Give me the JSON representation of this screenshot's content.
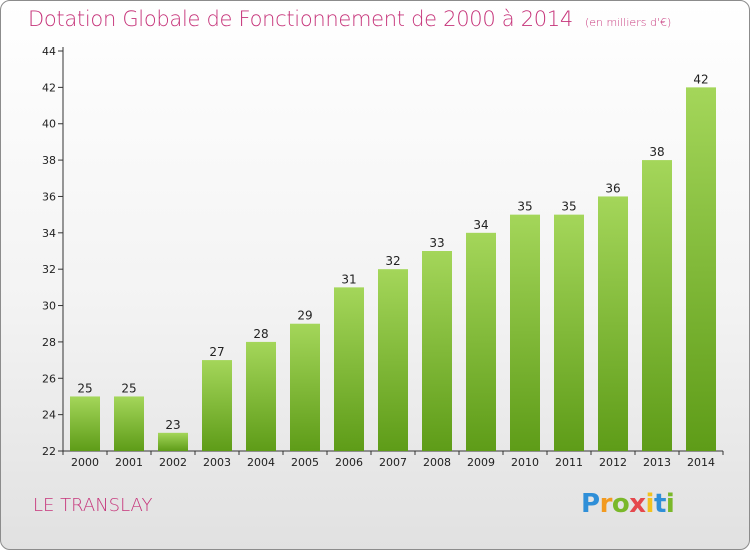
{
  "header": {
    "title": "Dotation Globale de Fonctionnement de 2000 à 2014",
    "unit": "(en milliers d'€)"
  },
  "footer": {
    "place": "LE TRANSLAY",
    "logo_letters": [
      "P",
      "r",
      "o",
      "x",
      "i",
      "t",
      "i"
    ]
  },
  "colors": {
    "title": "#c6347a",
    "bar_top": "#a4d65a",
    "bar_bottom": "#5e9c18",
    "logo": [
      "#2f8fd8",
      "#f29a1f",
      "#7ab82a",
      "#e5484d",
      "#f2c21f",
      "#2f8fd8",
      "#7ab82a"
    ]
  },
  "chart_data": {
    "type": "bar",
    "title": "Dotation Globale de Fonctionnement de 2000 à 2014",
    "subtitle": "(en milliers d'€)",
    "xlabel": "",
    "ylabel": "",
    "categories": [
      "2000",
      "2001",
      "2002",
      "2003",
      "2004",
      "2005",
      "2006",
      "2007",
      "2008",
      "2009",
      "2010",
      "2011",
      "2012",
      "2013",
      "2014"
    ],
    "values": [
      25,
      25,
      23,
      27,
      28,
      29,
      31,
      32,
      33,
      34,
      35,
      35,
      36,
      38,
      42
    ],
    "ylim": [
      22,
      44
    ],
    "yticks": [
      22,
      24,
      26,
      28,
      30,
      32,
      34,
      36,
      38,
      40,
      42,
      44
    ],
    "grid": false,
    "data_labels": true
  }
}
